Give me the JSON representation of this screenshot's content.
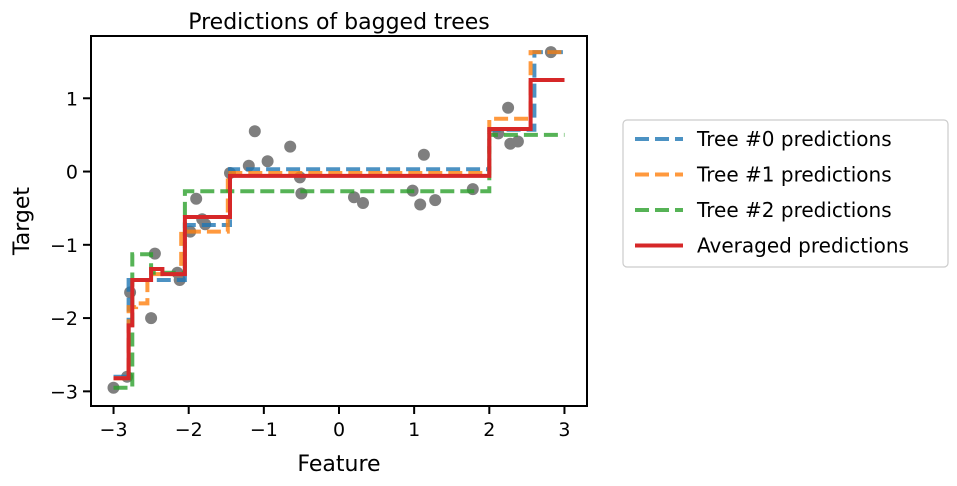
{
  "chart_data": {
    "type": "line",
    "title": "Predictions of bagged trees",
    "xlabel": "Feature",
    "ylabel": "Target",
    "xlim": [
      -3.3,
      3.3
    ],
    "ylim": [
      -3.2,
      1.85
    ],
    "xticks": [
      -3,
      -2,
      -1,
      0,
      1,
      2,
      3
    ],
    "xtick_labels": [
      "−3",
      "−2",
      "−1",
      "0",
      "1",
      "2",
      "3"
    ],
    "yticks": [
      -3,
      -2,
      -1,
      0,
      1
    ],
    "ytick_labels": [
      "−3",
      "−2",
      "−1",
      "0",
      "1"
    ],
    "grid": false,
    "legend_position": "outside-right",
    "points": {
      "color": "#7f7f7f",
      "data": [
        [
          -3.0,
          -2.95
        ],
        [
          -2.82,
          -2.8
        ],
        [
          -2.78,
          -1.65
        ],
        [
          -2.5,
          -2.0
        ],
        [
          -2.45,
          -1.12
        ],
        [
          -2.15,
          -1.38
        ],
        [
          -2.12,
          -1.48
        ],
        [
          -1.98,
          -0.82
        ],
        [
          -1.9,
          -0.37
        ],
        [
          -1.82,
          -0.65
        ],
        [
          -1.78,
          -0.72
        ],
        [
          -1.45,
          -0.02
        ],
        [
          -1.2,
          0.08
        ],
        [
          -1.12,
          0.55
        ],
        [
          -0.95,
          0.14
        ],
        [
          -0.65,
          0.34
        ],
        [
          -0.52,
          -0.08
        ],
        [
          -0.5,
          -0.3
        ],
        [
          0.2,
          -0.35
        ],
        [
          0.32,
          -0.43
        ],
        [
          0.98,
          -0.26
        ],
        [
          1.08,
          -0.45
        ],
        [
          1.13,
          0.23
        ],
        [
          1.28,
          -0.39
        ],
        [
          1.78,
          -0.24
        ],
        [
          2.12,
          0.52
        ],
        [
          2.25,
          0.87
        ],
        [
          2.28,
          0.38
        ],
        [
          2.38,
          0.41
        ],
        [
          2.82,
          1.63
        ]
      ]
    },
    "series": [
      {
        "name": "Tree #0 predictions",
        "color": "#1f77b4",
        "style": "dashed",
        "steps": [
          [
            -3.0,
            -2.8
          ],
          [
            -2.8,
            -1.48
          ],
          [
            -2.05,
            -0.73
          ],
          [
            -1.45,
            0.03
          ],
          [
            2.0,
            0.57
          ],
          [
            2.6,
            1.63
          ],
          [
            3.0,
            1.63
          ]
        ]
      },
      {
        "name": "Tree #1 predictions",
        "color": "#ff7f0e",
        "style": "dashed",
        "steps": [
          [
            -3.0,
            -2.82
          ],
          [
            -2.8,
            -1.85
          ],
          [
            -2.7,
            -1.8
          ],
          [
            -2.55,
            -1.4
          ],
          [
            -2.1,
            -0.82
          ],
          [
            -1.48,
            -0.02
          ],
          [
            2.0,
            0.72
          ],
          [
            2.55,
            1.63
          ],
          [
            3.0,
            1.63
          ]
        ]
      },
      {
        "name": "Tree #2 predictions",
        "color": "#2ca02c",
        "style": "dashed",
        "steps": [
          [
            -3.0,
            -2.95
          ],
          [
            -2.75,
            -1.13
          ],
          [
            -2.5,
            -1.38
          ],
          [
            -2.05,
            -0.27
          ],
          [
            2.0,
            0.5
          ],
          [
            3.0,
            0.5
          ]
        ]
      },
      {
        "name": "Averaged predictions",
        "color": "#d62728",
        "style": "solid",
        "steps": [
          [
            -3.0,
            -2.82
          ],
          [
            -2.8,
            -2.1
          ],
          [
            -2.75,
            -1.48
          ],
          [
            -2.5,
            -1.33
          ],
          [
            -2.35,
            -1.4
          ],
          [
            -2.05,
            -0.62
          ],
          [
            -1.45,
            -0.06
          ],
          [
            2.0,
            0.58
          ],
          [
            2.55,
            1.25
          ],
          [
            3.0,
            1.25
          ]
        ]
      }
    ]
  }
}
